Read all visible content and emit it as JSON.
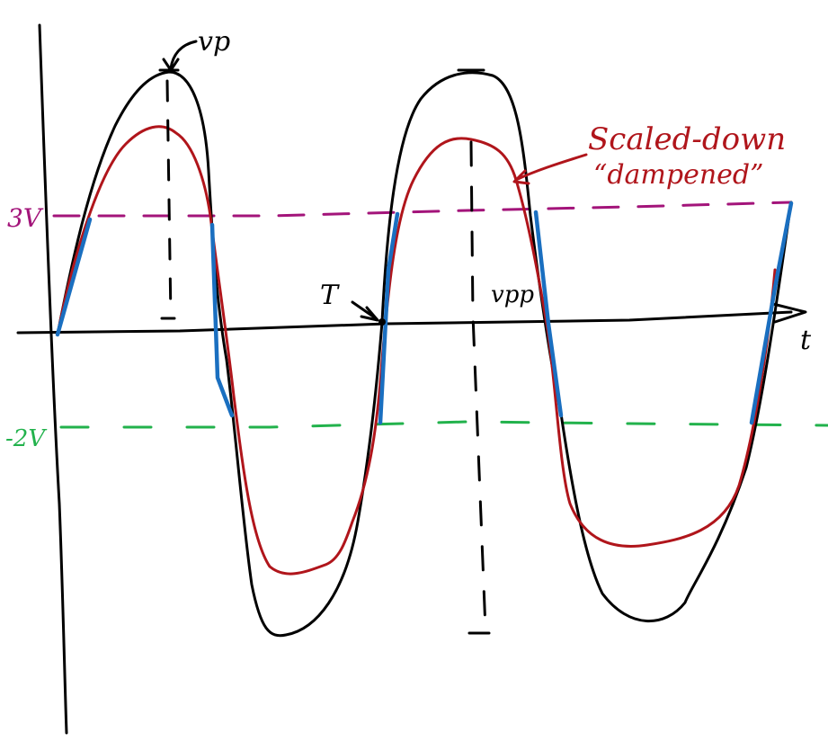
{
  "labels": {
    "vp": "vp",
    "vpp": "vpp",
    "period": "T",
    "t_axis": "t",
    "upper_level": "3V",
    "lower_level": "-2V",
    "annotation_line1": "Scaled-down",
    "annotation_line2": "“dampened”"
  },
  "colors": {
    "original_wave": "#000000",
    "scaled_wave": "#b0151b",
    "clipped_segments": "#1a6fc0",
    "upper_threshold": "#a3147a",
    "lower_threshold": "#22b24c",
    "annotation": "#b0151b"
  }
}
